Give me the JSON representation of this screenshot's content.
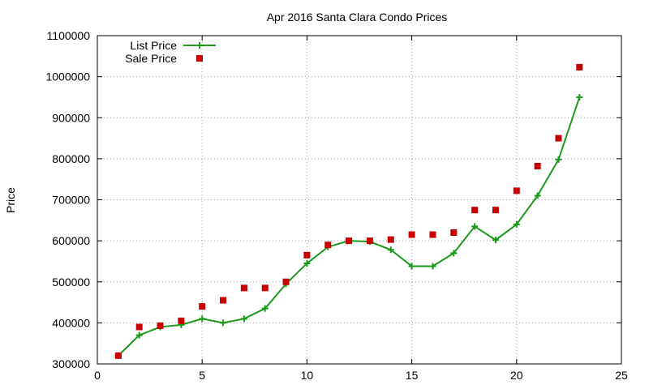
{
  "chart_data": {
    "type": "line",
    "title": "Apr 2016 Santa Clara Condo Prices",
    "xlabel": "",
    "ylabel": "Price",
    "xlim": [
      0,
      25
    ],
    "ylim": [
      300000,
      1100000
    ],
    "xticks": [
      0,
      5,
      10,
      15,
      20,
      25
    ],
    "yticks": [
      300000,
      400000,
      500000,
      600000,
      700000,
      800000,
      900000,
      1000000,
      1100000
    ],
    "grid": true,
    "legend_position": "top-left",
    "series": [
      {
        "name": "List Price",
        "style": "line-with-plus-markers",
        "color": "#1a9a1a",
        "x": [
          1,
          2,
          3,
          4,
          5,
          6,
          7,
          8,
          9,
          10,
          11,
          12,
          13,
          14,
          15,
          16,
          17,
          18,
          19,
          20,
          21,
          22,
          23
        ],
        "y": [
          320000,
          370000,
          390000,
          395000,
          410000,
          400000,
          410000,
          435000,
          495000,
          545000,
          585000,
          600000,
          598000,
          578000,
          538000,
          538000,
          570000,
          635000,
          602000,
          640000,
          710000,
          798000,
          950000
        ]
      },
      {
        "name": "Sale Price",
        "style": "square-markers",
        "color": "#c80000",
        "x": [
          1,
          2,
          3,
          4,
          5,
          6,
          7,
          8,
          9,
          10,
          11,
          12,
          13,
          14,
          15,
          16,
          17,
          18,
          19,
          20,
          21,
          22,
          23
        ],
        "y": [
          320000,
          390000,
          393000,
          405000,
          440000,
          455000,
          485000,
          485000,
          500000,
          565000,
          590000,
          600000,
          600000,
          603000,
          615000,
          615000,
          620000,
          675000,
          675000,
          722000,
          782000,
          850000,
          1023000
        ]
      }
    ]
  }
}
